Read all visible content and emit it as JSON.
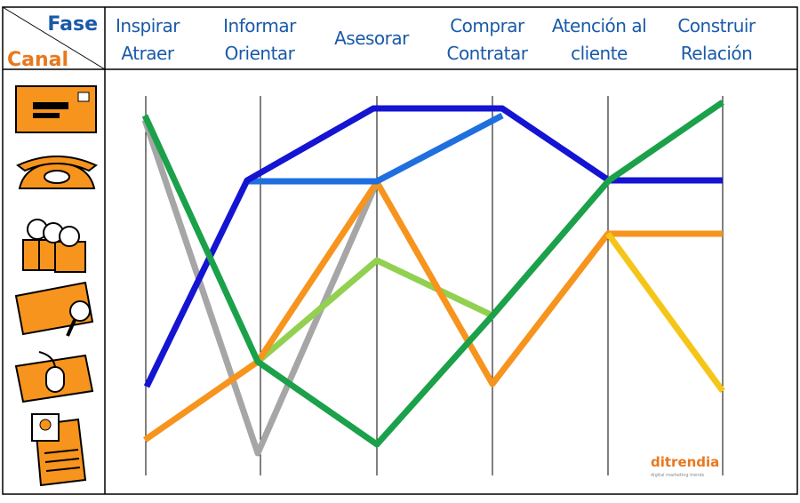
{
  "header": {
    "phase_label": "Fase",
    "channel_label": "Canal"
  },
  "phases": [
    {
      "lines": [
        "Inspirar",
        "Atraer"
      ]
    },
    {
      "lines": [
        "Informar",
        "Orientar"
      ]
    },
    {
      "lines": [
        "Asesorar"
      ]
    },
    {
      "lines": [
        "Comprar",
        "Contratar"
      ]
    },
    {
      "lines": [
        "Atención al",
        "cliente"
      ]
    },
    {
      "lines": [
        "Construir",
        "Relación"
      ]
    }
  ],
  "logo": {
    "name": "ditrendia",
    "tagline": "digital marketing trends"
  }
}
